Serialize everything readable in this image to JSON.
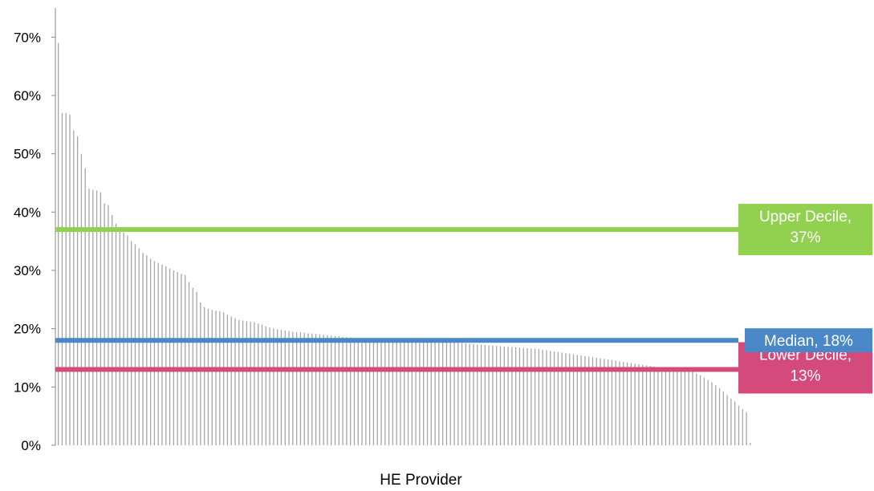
{
  "chart_data": {
    "type": "bar",
    "xlabel": "HE Provider",
    "ylabel": "",
    "ylim": [
      0,
      0.75
    ],
    "yticks": [
      {
        "value": 0,
        "label": "0%"
      },
      {
        "value": 0.1,
        "label": "10%"
      },
      {
        "value": 0.2,
        "label": "20%"
      },
      {
        "value": 0.3,
        "label": "30%"
      },
      {
        "value": 0.4,
        "label": "40%"
      },
      {
        "value": 0.5,
        "label": "50%"
      },
      {
        "value": 0.6,
        "label": "60%"
      },
      {
        "value": 0.7,
        "label": "70%"
      }
    ],
    "grid": false,
    "bar_color": "#a6a6a6",
    "values": [
      0.69,
      0.57,
      0.57,
      0.567,
      0.54,
      0.53,
      0.5,
      0.475,
      0.44,
      0.438,
      0.437,
      0.434,
      0.415,
      0.412,
      0.395,
      0.38,
      0.372,
      0.365,
      0.36,
      0.35,
      0.345,
      0.338,
      0.33,
      0.326,
      0.32,
      0.316,
      0.313,
      0.31,
      0.307,
      0.303,
      0.3,
      0.297,
      0.294,
      0.292,
      0.28,
      0.27,
      0.263,
      0.245,
      0.237,
      0.234,
      0.232,
      0.231,
      0.23,
      0.228,
      0.224,
      0.221,
      0.218,
      0.215,
      0.214,
      0.213,
      0.212,
      0.211,
      0.209,
      0.207,
      0.204,
      0.202,
      0.2,
      0.199,
      0.198,
      0.197,
      0.196,
      0.195,
      0.1945,
      0.194,
      0.193,
      0.192,
      0.1915,
      0.191,
      0.19,
      0.1895,
      0.189,
      0.188,
      0.1875,
      0.187,
      0.186,
      0.1855,
      0.185,
      0.184,
      0.1835,
      0.183,
      0.182,
      0.1815,
      0.181,
      0.1805,
      0.18,
      0.18,
      0.18,
      0.18,
      0.18,
      0.18,
      0.18,
      0.18,
      0.18,
      0.18,
      0.18,
      0.18,
      0.1795,
      0.179,
      0.1785,
      0.178,
      0.1775,
      0.177,
      0.1765,
      0.176,
      0.1755,
      0.175,
      0.1745,
      0.174,
      0.1735,
      0.173,
      0.1725,
      0.172,
      0.1715,
      0.171,
      0.1705,
      0.17,
      0.1695,
      0.169,
      0.1685,
      0.168,
      0.1675,
      0.167,
      0.1665,
      0.166,
      0.1655,
      0.165,
      0.164,
      0.163,
      0.162,
      0.161,
      0.16,
      0.159,
      0.158,
      0.157,
      0.156,
      0.155,
      0.154,
      0.153,
      0.152,
      0.151,
      0.15,
      0.149,
      0.148,
      0.147,
      0.146,
      0.145,
      0.144,
      0.143,
      0.142,
      0.141,
      0.14,
      0.139,
      0.138,
      0.137,
      0.136,
      0.135,
      0.134,
      0.133,
      0.132,
      0.131,
      0.13,
      0.13,
      0.129,
      0.128,
      0.127,
      0.126,
      0.123,
      0.12,
      0.116,
      0.112,
      0.108,
      0.103,
      0.098,
      0.092,
      0.086,
      0.08,
      0.075,
      0.068,
      0.062,
      0.057,
      0.004
    ],
    "reference_lines": [
      {
        "name": "Upper Decile",
        "value": 0.37,
        "label": "Upper Decile, 37%",
        "label_lines": [
          "Upper Decile,",
          "37%"
        ],
        "color": "#92d050"
      },
      {
        "name": "Median",
        "value": 0.18,
        "label": "Median, 18%",
        "label_lines": [
          "Median, 18%"
        ],
        "color": "#4a87c7"
      },
      {
        "name": "Lower Decile",
        "value": 0.13,
        "label": "Lower Decile, 13%",
        "label_lines": [
          "Lower Decile,",
          "13%"
        ],
        "color": "#d44a7a"
      }
    ]
  }
}
